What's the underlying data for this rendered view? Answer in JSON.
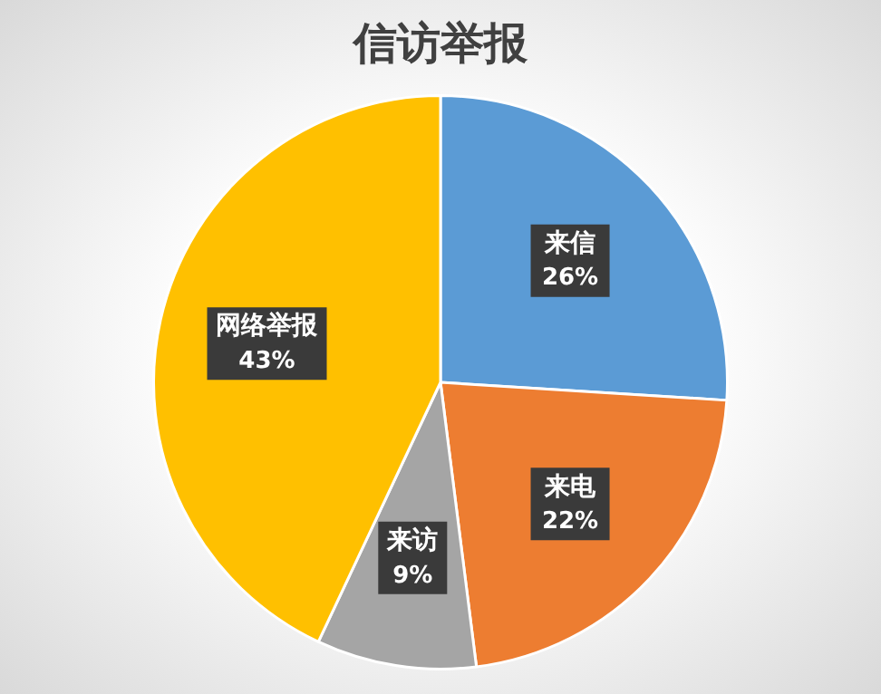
{
  "chart_data": {
    "type": "pie",
    "title": "信访举报",
    "categories": [
      "来信",
      "来电",
      "来访",
      "网络举报"
    ],
    "values": [
      26,
      22,
      9,
      43
    ],
    "colors": [
      "#5b9bd5",
      "#ed7d31",
      "#a5a5a5",
      "#ffc000"
    ],
    "value_labels": [
      "26%",
      "22%",
      "9%",
      "43%"
    ],
    "legend": false
  }
}
